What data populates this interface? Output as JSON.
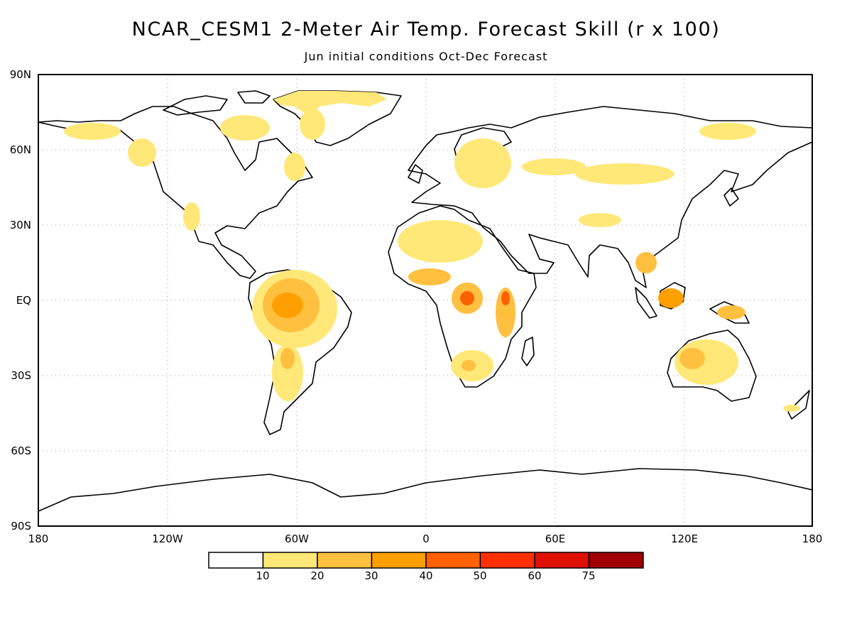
{
  "title": "NCAR_CESM1 2-Meter Air Temp. Forecast Skill (r x 100)",
  "subtitle": "Jun initial conditions  Oct-Dec Forecast",
  "map": {
    "lat_labels": [
      "90N",
      "60N",
      "30N",
      "EQ",
      "30S",
      "60S",
      "90S"
    ],
    "lon_labels": [
      "180",
      "120W",
      "60W",
      "0",
      "60E",
      "120E",
      "180"
    ],
    "gridlines": true
  },
  "legend": {
    "labels": [
      "10",
      "20",
      "30",
      "40",
      "50",
      "60",
      "75"
    ],
    "colors": [
      "#ffffff",
      "#ffe878",
      "#ffc040",
      "#ffa000",
      "#ff6000",
      "#ff3000",
      "#e01000",
      "#a00000"
    ]
  },
  "chart_data": {
    "type": "heatmap",
    "title": "NCAR_CESM1 2-Meter Air Temp. Forecast Skill (r x 100)",
    "subtitle": "Jun initial conditions  Oct-Dec Forecast",
    "xlim": [
      -180,
      180
    ],
    "ylim": [
      -90,
      90
    ],
    "color_bins": [
      10,
      20,
      30,
      40,
      50,
      60,
      75
    ],
    "regions": [
      {
        "lon": -62,
        "lat": -2,
        "value": 40
      },
      {
        "lon": -55,
        "lat": -10,
        "value": 20
      },
      {
        "lon": -60,
        "lat": -30,
        "value": 20
      },
      {
        "lon": -50,
        "lat": 70,
        "value": 20
      },
      {
        "lon": -130,
        "lat": 63,
        "value": 10
      },
      {
        "lon": 5,
        "lat": 27,
        "value": 20
      },
      {
        "lon": 17,
        "lat": -2,
        "value": 40
      },
      {
        "lon": 37,
        "lat": -5,
        "value": 40
      },
      {
        "lon": 20,
        "lat": -27,
        "value": 20
      },
      {
        "lon": 25,
        "lat": 50,
        "value": 10
      },
      {
        "lon": 90,
        "lat": 55,
        "value": 10
      },
      {
        "lon": 115,
        "lat": 0,
        "value": 30
      },
      {
        "lon": 130,
        "lat": -25,
        "value": 20
      }
    ]
  }
}
